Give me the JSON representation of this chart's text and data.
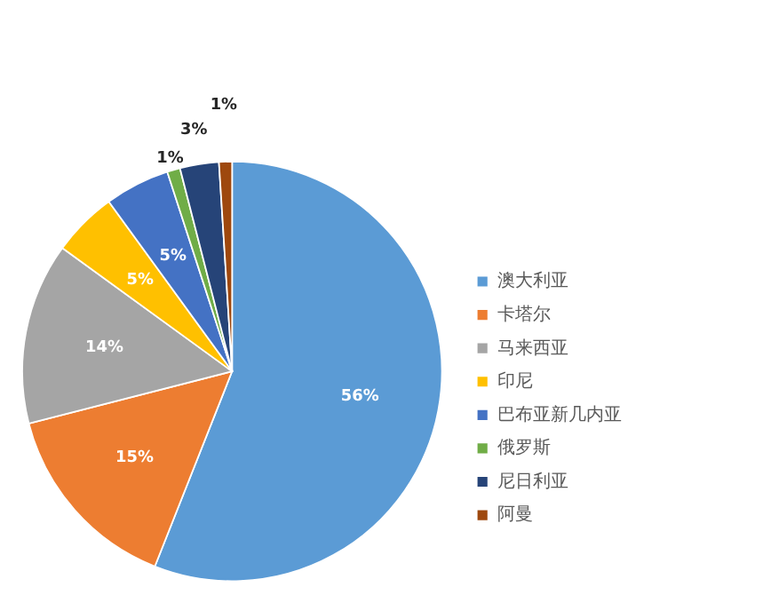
{
  "chart_data": {
    "type": "pie",
    "categories": [
      "澳大利亚",
      "卡塔尔",
      "马来西亚",
      "印尼",
      "巴布亚新几内亚",
      "俄罗斯",
      "尼日利亚",
      "阿曼"
    ],
    "values": [
      56,
      15,
      14,
      5,
      5,
      1,
      3,
      1
    ],
    "colors": [
      "#5b9bd5",
      "#ed7d31",
      "#a5a5a5",
      "#ffc000",
      "#4472c4",
      "#70ad47",
      "#264478",
      "#9e480e"
    ],
    "value_labels": [
      "56%",
      "15%",
      "14%",
      "5%",
      "5%",
      "1%",
      "3%",
      "1%"
    ],
    "legend": "right"
  }
}
